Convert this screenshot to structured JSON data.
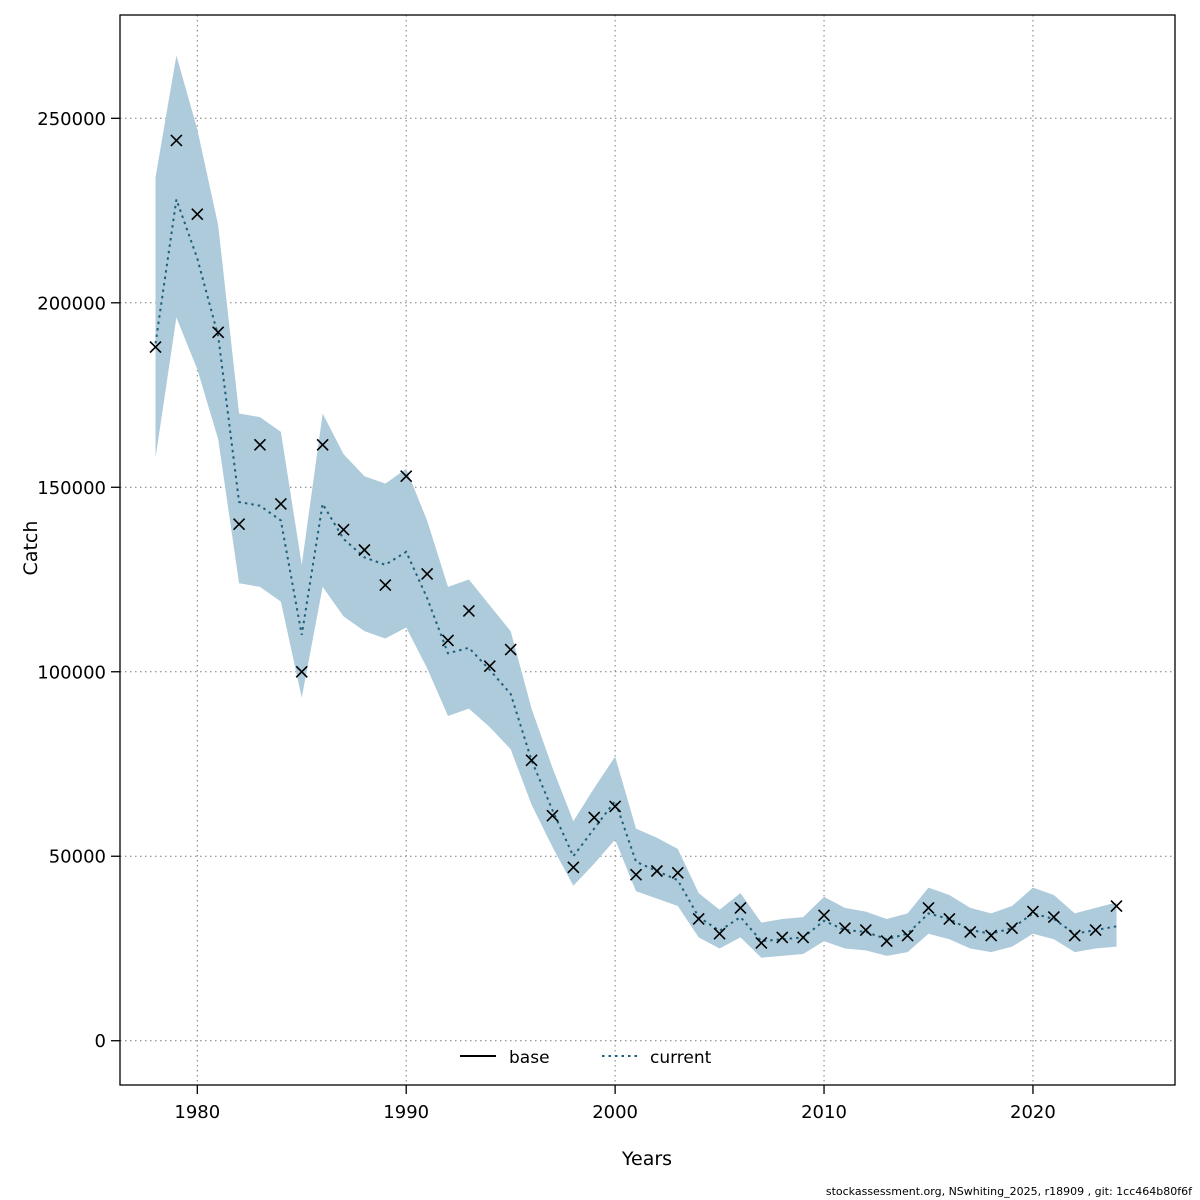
{
  "footer": {
    "text": "stockassessment.org, NSwhiting_2025, r18909 , git: 1cc464b80f6f"
  },
  "chart_data": {
    "type": "line",
    "title": "",
    "xlabel": "Years",
    "ylabel": "Catch",
    "xlim": [
      1976.3,
      2026.8
    ],
    "ylim": [
      -12000,
      278000
    ],
    "xticks": [
      1980,
      1990,
      2000,
      2010,
      2020
    ],
    "yticks": [
      0,
      50000,
      100000,
      150000,
      200000,
      250000
    ],
    "grid": true,
    "legend_position": "bottom-center-inside",
    "legend": [
      {
        "label": "base",
        "style": "solid",
        "color": "#000000"
      },
      {
        "label": "current",
        "style": "dotted",
        "color": "#1f5f7a"
      }
    ],
    "band_color": "#aecbdb",
    "marker_color": "#000000",
    "years": [
      1978,
      1979,
      1980,
      1981,
      1982,
      1983,
      1984,
      1985,
      1986,
      1987,
      1988,
      1989,
      1990,
      1991,
      1992,
      1993,
      1994,
      1995,
      1996,
      1997,
      1998,
      1999,
      2000,
      2001,
      2002,
      2003,
      2004,
      2005,
      2006,
      2007,
      2008,
      2009,
      2010,
      2011,
      2012,
      2013,
      2014,
      2015,
      2016,
      2017,
      2018,
      2019,
      2020,
      2021,
      2022,
      2023,
      2024
    ],
    "series": [
      {
        "name": "observed_catch_markers",
        "type": "scatter-x",
        "color": "#000000",
        "values": [
          188000,
          244000,
          224000,
          192000,
          140000,
          161500,
          145500,
          100000,
          161500,
          138500,
          133000,
          123500,
          153000,
          126500,
          108500,
          116500,
          101500,
          106000,
          76000,
          61000,
          47000,
          60500,
          63500,
          45000,
          46000,
          45500,
          33000,
          29000,
          36000,
          26500,
          28000,
          28000,
          34000,
          30500,
          30000,
          27000,
          28500,
          36000,
          33000,
          29500,
          28500,
          30500,
          35000,
          33500,
          28500,
          30000,
          36500
        ]
      },
      {
        "name": "current",
        "type": "dotted-line",
        "color": "#1f5f7a",
        "values": [
          189000,
          228000,
          212000,
          191000,
          146000,
          145000,
          141000,
          110000,
          145500,
          136000,
          131000,
          129000,
          132500,
          120000,
          105000,
          106500,
          100500,
          94000,
          76000,
          62500,
          50000,
          57500,
          65000,
          48500,
          46000,
          43500,
          33500,
          29800,
          33500,
          27000,
          27500,
          28000,
          32500,
          30000,
          29500,
          27500,
          29000,
          34500,
          33000,
          30000,
          29000,
          30500,
          34500,
          33000,
          29000,
          30000,
          31000
        ]
      }
    ],
    "band": {
      "lower": [
        158000,
        196000,
        182000,
        163000,
        124000,
        123000,
        119000,
        93000,
        123000,
        115000,
        111000,
        109000,
        112000,
        101000,
        88000,
        90000,
        85000,
        79000,
        64000,
        52500,
        42000,
        48000,
        54500,
        40500,
        38500,
        36500,
        28000,
        25000,
        28000,
        22500,
        23000,
        23500,
        27000,
        25000,
        24500,
        23000,
        24000,
        29000,
        27500,
        25000,
        24000,
        25500,
        29000,
        27500,
        24000,
        25000,
        25500
      ],
      "upper": [
        234000,
        267000,
        247000,
        221000,
        170000,
        169000,
        165000,
        129000,
        170000,
        159000,
        153000,
        151000,
        155000,
        141000,
        123000,
        125000,
        118000,
        111000,
        90000,
        74000,
        59500,
        68500,
        77000,
        57500,
        55000,
        52000,
        40000,
        35500,
        40000,
        32000,
        33000,
        33500,
        39000,
        36000,
        35000,
        33000,
        34500,
        41500,
        39500,
        36000,
        34500,
        36500,
        41500,
        39500,
        34500,
        36000,
        37500
      ]
    }
  }
}
